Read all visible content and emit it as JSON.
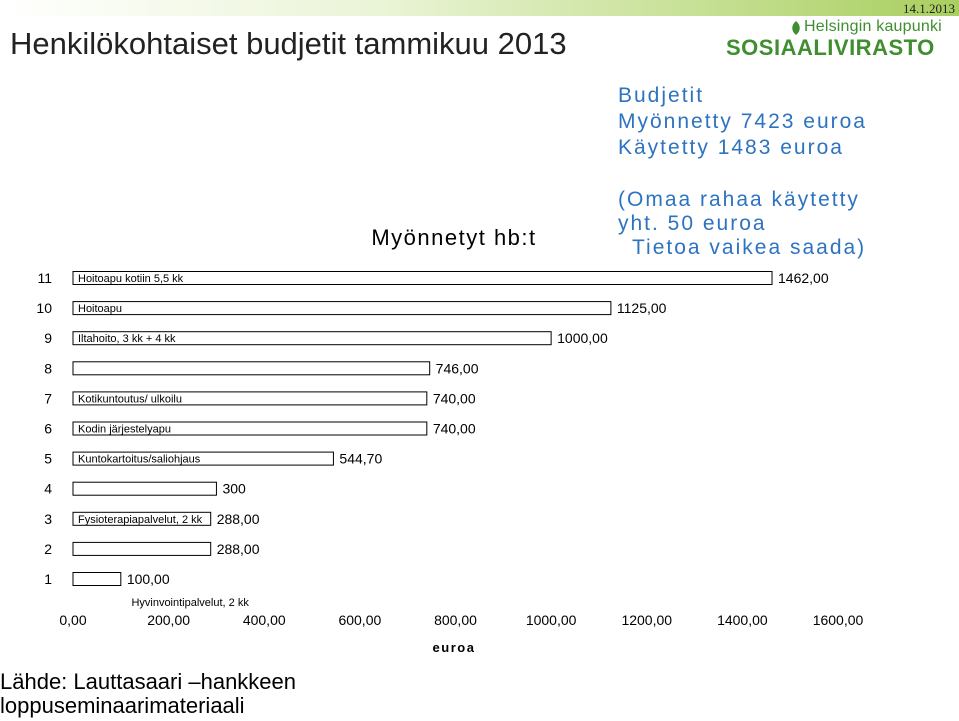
{
  "header": {
    "date": "14.1.2013",
    "title": "Henkilökohtaiset budjetit tammikuu 2013",
    "logo_city": "Helsingin kaupunki",
    "logo_dept": "SOSIAALIVIRASTO"
  },
  "budget_box": {
    "line1": "Budjetit",
    "line2": "Myönnetty 7423 euroa",
    "line3": "Käytetty 1483 euroa"
  },
  "note_box": {
    "line1": "(Omaa rahaa käytetty",
    "line2": "yht. 50 euroa",
    "line3": "Tietoa vaikea saada)"
  },
  "source": {
    "line1": "Lähde: Lauttasaari –hankkeen",
    "line2": "loppuseminaarimateriaali"
  },
  "colors": {
    "bar_fill": "#ffffff",
    "bar_stroke": "#000000",
    "accent_blue": "#2d73bf",
    "brand_green": "#3f8e2f"
  },
  "chart_data": {
    "type": "bar",
    "orientation": "horizontal",
    "title": "Myönnetyt hb:t",
    "xlabel": "euroa",
    "ylabel": "",
    "xlim": [
      0,
      1600
    ],
    "x_ticks": [
      "0,00",
      "200,00",
      "400,00",
      "600,00",
      "800,00",
      "1000,00",
      "1200,00",
      "1400,00",
      "1600,00"
    ],
    "categories": [
      "1",
      "2",
      "3",
      "4",
      "5",
      "6",
      "7",
      "8",
      "9",
      "10",
      "11"
    ],
    "values": [
      100,
      288,
      288,
      300,
      544.7,
      740,
      740,
      746,
      1000,
      1125,
      1462
    ],
    "value_labels": [
      "100,00",
      "288,00",
      "288,00",
      "300",
      "544,70",
      "740,00",
      "740,00",
      "746,00",
      "1000,00",
      "1125,00",
      "1462,00"
    ],
    "bar_names": {
      "1": "Hyvinvointipalvelut, 2 kk",
      "3": "Fysioterapiapalvelut, 2 kk",
      "5": "Kuntokartoitus/saliohjaus",
      "6": "Kodin järjestelyapu",
      "7": "Kotikuntoutus/ ulkoilu",
      "9": "Iltahoito, 3 kk + 4 kk",
      "10": "Hoitoapu",
      "11": "Hoitoapu kotiin  5,5 kk"
    },
    "grid": false,
    "legend": "none"
  }
}
